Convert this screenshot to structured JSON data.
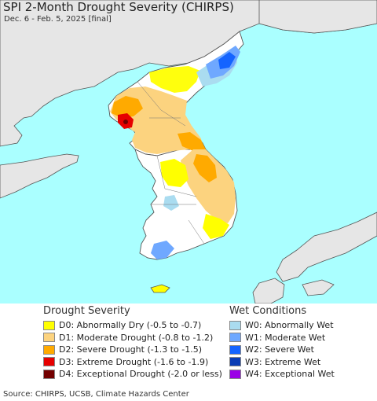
{
  "header": {
    "title": "SPI 2-Month Drought Severity (CHIRPS)",
    "subtitle": "Dec. 6 - Feb. 5, 2025 [final]"
  },
  "colors": {
    "ocean": "#aaffff",
    "land_outside": "#e6e6e6",
    "land_inside": "#ffffff",
    "border": "#555555"
  },
  "legend_drought": {
    "heading": "Drought Severity",
    "items": [
      {
        "label": "D0: Abnormally Dry (-0.5 to -0.7)",
        "color": "#ffff00"
      },
      {
        "label": "D1: Moderate Drought (-0.8 to -1.2)",
        "color": "#fcd37f"
      },
      {
        "label": "D2: Severe Drought (-1.3 to -1.5)",
        "color": "#ffaa00"
      },
      {
        "label": "D3: Extreme Drought (-1.6 to -1.9)",
        "color": "#e60000"
      },
      {
        "label": "D4: Exceptional Drought (-2.0 or less)",
        "color": "#730000"
      }
    ]
  },
  "legend_wet": {
    "heading": "Wet Conditions",
    "items": [
      {
        "label": "W0: Abnormally Wet",
        "color": "#aadcf0"
      },
      {
        "label": "W1: Moderate Wet",
        "color": "#6fa8ff"
      },
      {
        "label": "W2: Severe Wet",
        "color": "#1464ff"
      },
      {
        "label": "W3: Extreme Wet",
        "color": "#0a3cb4"
      },
      {
        "label": "W4: Exceptional Wet",
        "color": "#9b00e6"
      }
    ]
  },
  "source": "Source: CHIRPS, UCSB, Climate Hazards Center"
}
